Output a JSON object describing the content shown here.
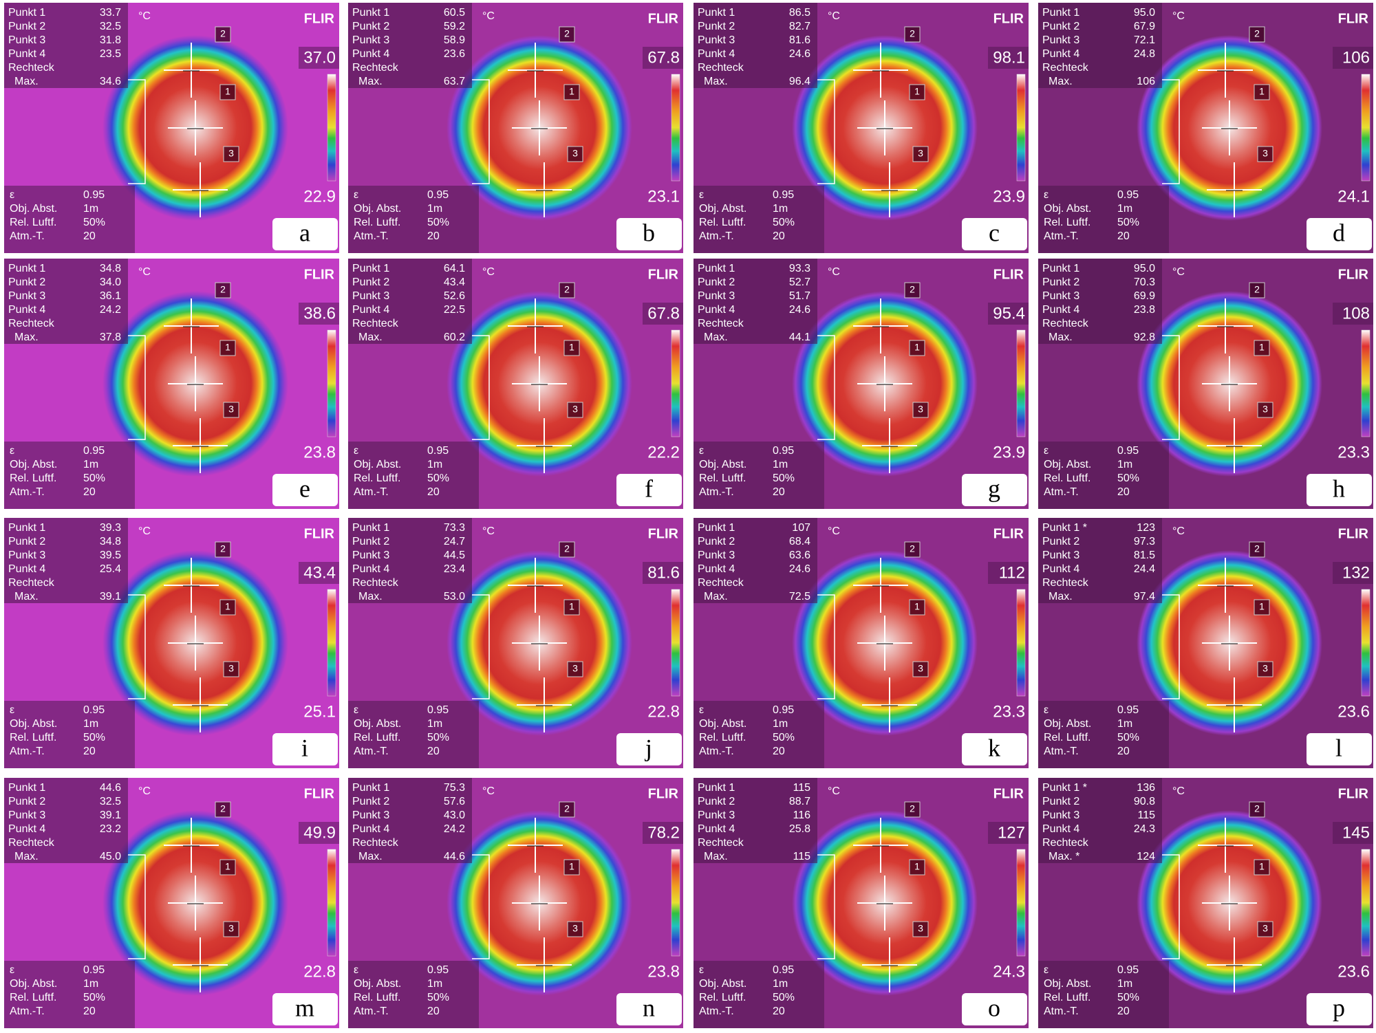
{
  "common": {
    "unit": "°C",
    "brand": "FLIR",
    "rechteck": "Rechteck",
    "spots": [
      "1",
      "2",
      "3"
    ],
    "params": [
      {
        "label": "ε",
        "value": "0.95"
      },
      {
        "label": "Obj. Abst.",
        "value": "1m"
      },
      {
        "label": "Rel. Luftf.",
        "value": "50%"
      },
      {
        "label": "Atm.-T.",
        "value": "20"
      }
    ]
  },
  "panels": [
    {
      "letter": "a",
      "scale_max": "37.0",
      "scale_min": "22.9",
      "readings": [
        {
          "label": "Punkt 1",
          "value": "33.7"
        },
        {
          "label": "Punkt 2",
          "value": "32.5"
        },
        {
          "label": "Punkt 3",
          "value": "31.8"
        },
        {
          "label": "Punkt 4",
          "value": "23.5"
        },
        {
          "label": "Max.",
          "value": "34.6"
        }
      ]
    },
    {
      "letter": "b",
      "scale_max": "67.8",
      "scale_min": "23.1",
      "readings": [
        {
          "label": "Punkt 1",
          "value": "60.5"
        },
        {
          "label": "Punkt 2",
          "value": "59.2"
        },
        {
          "label": "Punkt 3",
          "value": "58.9"
        },
        {
          "label": "Punkt 4",
          "value": "23.6"
        },
        {
          "label": "Max.",
          "value": "63.7"
        }
      ]
    },
    {
      "letter": "c",
      "scale_max": "98.1",
      "scale_min": "23.9",
      "readings": [
        {
          "label": "Punkt 1",
          "value": "86.5"
        },
        {
          "label": "Punkt 2",
          "value": "82.7"
        },
        {
          "label": "Punkt 3",
          "value": "81.6"
        },
        {
          "label": "Punkt 4",
          "value": "24.6"
        },
        {
          "label": "Max.",
          "value": "96.4"
        }
      ]
    },
    {
      "letter": "d",
      "scale_max": "106",
      "scale_min": "24.1",
      "readings": [
        {
          "label": "Punkt 1",
          "value": "95.0"
        },
        {
          "label": "Punkt 2",
          "value": "67.9"
        },
        {
          "label": "Punkt 3",
          "value": "72.1"
        },
        {
          "label": "Punkt 4",
          "value": "24.8"
        },
        {
          "label": "Max.",
          "value": "106"
        }
      ]
    },
    {
      "letter": "e",
      "scale_max": "38.6",
      "scale_min": "23.8",
      "readings": [
        {
          "label": "Punkt 1",
          "value": "34.8"
        },
        {
          "label": "Punkt 2",
          "value": "34.0"
        },
        {
          "label": "Punkt 3",
          "value": "36.1"
        },
        {
          "label": "Punkt 4",
          "value": "24.2"
        },
        {
          "label": "Max.",
          "value": "37.8"
        }
      ]
    },
    {
      "letter": "f",
      "scale_max": "67.8",
      "scale_min": "22.2",
      "readings": [
        {
          "label": "Punkt 1",
          "value": "64.1"
        },
        {
          "label": "Punkt 2",
          "value": "43.4"
        },
        {
          "label": "Punkt 3",
          "value": "52.6"
        },
        {
          "label": "Punkt 4",
          "value": "22.5"
        },
        {
          "label": "Max.",
          "value": "60.2"
        }
      ]
    },
    {
      "letter": "g",
      "scale_max": "95.4",
      "scale_min": "23.9",
      "readings": [
        {
          "label": "Punkt 1",
          "value": "93.3"
        },
        {
          "label": "Punkt 2",
          "value": "52.7"
        },
        {
          "label": "Punkt 3",
          "value": "51.7"
        },
        {
          "label": "Punkt 4",
          "value": "24.6"
        },
        {
          "label": "Max.",
          "value": "44.1"
        }
      ]
    },
    {
      "letter": "h",
      "scale_max": "108",
      "scale_min": "23.3",
      "readings": [
        {
          "label": "Punkt 1",
          "value": "95.0"
        },
        {
          "label": "Punkt 2",
          "value": "70.3"
        },
        {
          "label": "Punkt 3",
          "value": "69.9"
        },
        {
          "label": "Punkt 4",
          "value": "23.8"
        },
        {
          "label": "Max.",
          "value": "92.8"
        }
      ]
    },
    {
      "letter": "i",
      "scale_max": "43.4",
      "scale_min": "25.1",
      "readings": [
        {
          "label": "Punkt 1",
          "value": "39.3"
        },
        {
          "label": "Punkt 2",
          "value": "34.8"
        },
        {
          "label": "Punkt 3",
          "value": "39.5"
        },
        {
          "label": "Punkt 4",
          "value": "25.4"
        },
        {
          "label": "Max.",
          "value": "39.1"
        }
      ]
    },
    {
      "letter": "j",
      "scale_max": "81.6",
      "scale_min": "22.8",
      "readings": [
        {
          "label": "Punkt 1",
          "value": "73.3"
        },
        {
          "label": "Punkt 2",
          "value": "24.7"
        },
        {
          "label": "Punkt 3",
          "value": "44.5"
        },
        {
          "label": "Punkt 4",
          "value": "23.4"
        },
        {
          "label": "Max.",
          "value": "53.0"
        }
      ]
    },
    {
      "letter": "k",
      "scale_max": "112",
      "scale_min": "23.3",
      "readings": [
        {
          "label": "Punkt 1",
          "value": "107"
        },
        {
          "label": "Punkt 2",
          "value": "68.4"
        },
        {
          "label": "Punkt 3",
          "value": "63.6"
        },
        {
          "label": "Punkt 4",
          "value": "24.6"
        },
        {
          "label": "Max.",
          "value": "72.5"
        }
      ]
    },
    {
      "letter": "l",
      "scale_max": "132",
      "scale_min": "23.6",
      "readings": [
        {
          "label": "Punkt 1 *",
          "value": "123"
        },
        {
          "label": "Punkt 2",
          "value": "97.3"
        },
        {
          "label": "Punkt 3",
          "value": "81.5"
        },
        {
          "label": "Punkt 4",
          "value": "24.4"
        },
        {
          "label": "Max.",
          "value": "97.4"
        }
      ]
    },
    {
      "letter": "m",
      "scale_max": "49.9",
      "scale_min": "22.8",
      "readings": [
        {
          "label": "Punkt 1",
          "value": "44.6"
        },
        {
          "label": "Punkt 2",
          "value": "32.5"
        },
        {
          "label": "Punkt 3",
          "value": "39.1"
        },
        {
          "label": "Punkt 4",
          "value": "23.2"
        },
        {
          "label": "Max.",
          "value": "45.0"
        }
      ]
    },
    {
      "letter": "n",
      "scale_max": "78.2",
      "scale_min": "23.8",
      "readings": [
        {
          "label": "Punkt 1",
          "value": "75.3"
        },
        {
          "label": "Punkt 2",
          "value": "57.6"
        },
        {
          "label": "Punkt 3",
          "value": "43.0"
        },
        {
          "label": "Punkt 4",
          "value": "24.2"
        },
        {
          "label": "Max.",
          "value": "44.6"
        }
      ]
    },
    {
      "letter": "o",
      "scale_max": "127",
      "scale_min": "24.3",
      "readings": [
        {
          "label": "Punkt 1",
          "value": "115"
        },
        {
          "label": "Punkt 2",
          "value": "88.7"
        },
        {
          "label": "Punkt 3",
          "value": "116"
        },
        {
          "label": "Punkt 4",
          "value": "25.8"
        },
        {
          "label": "Max.",
          "value": "115"
        }
      ]
    },
    {
      "letter": "p",
      "scale_max": "145",
      "scale_min": "23.6",
      "readings": [
        {
          "label": "Punkt 1 *",
          "value": "136"
        },
        {
          "label": "Punkt 2",
          "value": "90.8"
        },
        {
          "label": "Punkt 3",
          "value": "115"
        },
        {
          "label": "Punkt 4",
          "value": "24.3"
        },
        {
          "label": "Max. *",
          "value": "124"
        }
      ]
    }
  ]
}
